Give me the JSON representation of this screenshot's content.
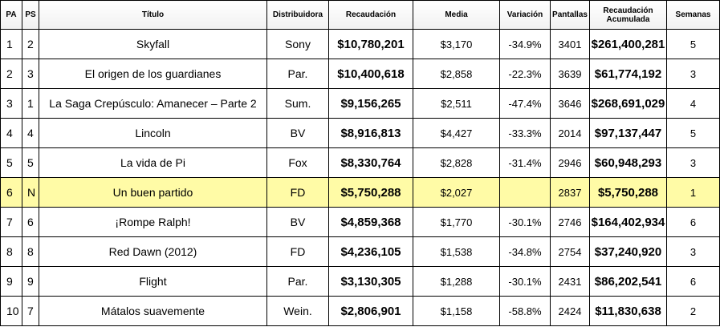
{
  "headers": {
    "pa": "PA",
    "ps": "PS",
    "titulo": "Título",
    "distribuidora": "Distribuidora",
    "recaudacion": "Recaudación",
    "media": "Media",
    "variacion": "Variación",
    "pantallas": "Pantallas",
    "recaudacion_acumulada": "Recaudación Acumulada",
    "semanas": "Semanas"
  },
  "rows": [
    {
      "pa": "1",
      "ps": "2",
      "titulo": "Skyfall",
      "distribuidora": "Sony",
      "recaudacion": "$10,780,201",
      "media": "$3,170",
      "variacion": "-34.9%",
      "pantallas": "3401",
      "acumulada": "$261,400,281",
      "semanas": "5"
    },
    {
      "pa": "2",
      "ps": "3",
      "titulo": "El origen de los guardianes",
      "distribuidora": "Par.",
      "recaudacion": "$10,400,618",
      "media": "$2,858",
      "variacion": "-22.3%",
      "pantallas": "3639",
      "acumulada": "$61,774,192",
      "semanas": "3"
    },
    {
      "pa": "3",
      "ps": "1",
      "titulo": "La Saga Crepúsculo: Amanecer – Parte 2",
      "distribuidora": "Sum.",
      "recaudacion": "$9,156,265",
      "media": "$2,511",
      "variacion": "-47.4%",
      "pantallas": "3646",
      "acumulada": "$268,691,029",
      "semanas": "4"
    },
    {
      "pa": "4",
      "ps": "4",
      "titulo": "Lincoln",
      "distribuidora": "BV",
      "recaudacion": "$8,916,813",
      "media": "$4,427",
      "variacion": "-33.3%",
      "pantallas": "2014",
      "acumulada": "$97,137,447",
      "semanas": "5"
    },
    {
      "pa": "5",
      "ps": "5",
      "titulo": "La vida de Pi",
      "distribuidora": "Fox",
      "recaudacion": "$8,330,764",
      "media": "$2,828",
      "variacion": "-31.4%",
      "pantallas": "2946",
      "acumulada": "$60,948,293",
      "semanas": "3"
    },
    {
      "pa": "6",
      "ps": "N",
      "titulo": "Un buen partido",
      "distribuidora": "FD",
      "recaudacion": "$5,750,288",
      "media": "$2,027",
      "variacion": "",
      "pantallas": "2837",
      "acumulada": "$5,750,288",
      "semanas": "1"
    },
    {
      "pa": "7",
      "ps": "6",
      "titulo": "¡Rompe Ralph!",
      "distribuidora": "BV",
      "recaudacion": "$4,859,368",
      "media": "$1,770",
      "variacion": "-30.1%",
      "pantallas": "2746",
      "acumulada": "$164,402,934",
      "semanas": "6"
    },
    {
      "pa": "8",
      "ps": "8",
      "titulo": "Red Dawn (2012)",
      "distribuidora": "FD",
      "recaudacion": "$4,236,105",
      "media": "$1,538",
      "variacion": "-34.8%",
      "pantallas": "2754",
      "acumulada": "$37,240,920",
      "semanas": "3"
    },
    {
      "pa": "9",
      "ps": "9",
      "titulo": "Flight",
      "distribuidora": "Par.",
      "recaudacion": "$3,130,305",
      "media": "$1,288",
      "variacion": "-30.1%",
      "pantallas": "2431",
      "acumulada": "$86,202,541",
      "semanas": "6"
    },
    {
      "pa": "10",
      "ps": "7",
      "titulo": "Mátalos suavemente",
      "distribuidora": "Wein.",
      "recaudacion": "$2,806,901",
      "media": "$1,158",
      "variacion": "-58.8%",
      "pantallas": "2424",
      "acumulada": "$11,830,638",
      "semanas": "2"
    }
  ],
  "highlight_row_color": "#fffba6"
}
